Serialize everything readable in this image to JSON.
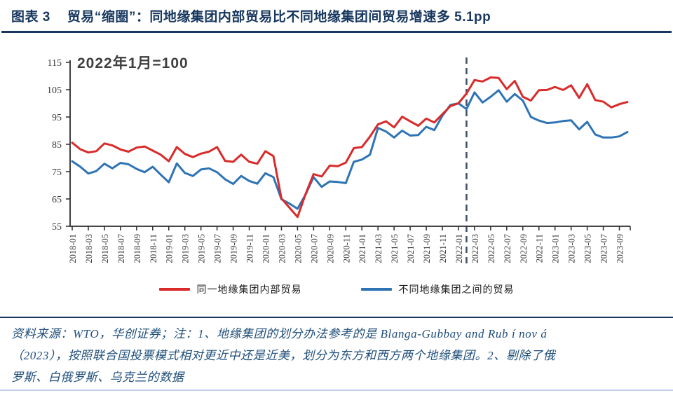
{
  "figure": {
    "title_label": "图表 3",
    "title_text": "贸易“缩圈”：同地缘集团内部贸易比不同地缘集团间贸易增速多 5.1pp",
    "accent_color": "#17375e"
  },
  "chart_data": {
    "type": "line",
    "annotation": "2022年1月=100",
    "ylim": [
      55,
      115
    ],
    "yticks": [
      55,
      65,
      75,
      85,
      95,
      105,
      115
    ],
    "grid": false,
    "legend_position": "bottom",
    "x": [
      "2018-01",
      "2018-02",
      "2018-03",
      "2018-04",
      "2018-05",
      "2018-06",
      "2018-07",
      "2018-08",
      "2018-09",
      "2018-10",
      "2018-11",
      "2018-12",
      "2019-01",
      "2019-02",
      "2019-03",
      "2019-04",
      "2019-05",
      "2019-06",
      "2019-07",
      "2019-08",
      "2019-09",
      "2019-10",
      "2019-11",
      "2019-12",
      "2020-01",
      "2020-02",
      "2020-03",
      "2020-04",
      "2020-05",
      "2020-06",
      "2020-07",
      "2020-08",
      "2020-09",
      "2020-10",
      "2020-11",
      "2020-12",
      "2021-01",
      "2021-02",
      "2021-03",
      "2021-04",
      "2021-05",
      "2021-06",
      "2021-07",
      "2021-08",
      "2021-09",
      "2021-10",
      "2021-11",
      "2021-12",
      "2022-01",
      "2022-02",
      "2022-03",
      "2022-04",
      "2022-05",
      "2022-06",
      "2022-07",
      "2022-08",
      "2022-09",
      "2022-10",
      "2022-11",
      "2022-12",
      "2023-01",
      "2023-02",
      "2023-03",
      "2023-04",
      "2023-05",
      "2023-06",
      "2023-07",
      "2023-08",
      "2023-09",
      "2023-10"
    ],
    "x_tick_every": 2,
    "vline": {
      "at": "2022-02",
      "index": 49,
      "color": "#44546a",
      "style": "dashed"
    },
    "series": [
      {
        "name": "同一地缘集团内部贸易",
        "color": "#d92b2b",
        "values": [
          85.6,
          83.2,
          82.0,
          82.5,
          85.3,
          84.6,
          83.1,
          82.3,
          83.8,
          84.2,
          82.7,
          81.2,
          78.8,
          84.0,
          81.5,
          80.3,
          81.6,
          82.3,
          84.0,
          78.9,
          78.6,
          81.2,
          78.6,
          77.9,
          82.5,
          80.7,
          65.2,
          61.8,
          58.4,
          66.8,
          74.1,
          73.2,
          77.2,
          77.0,
          78.3,
          83.6,
          84.0,
          87.8,
          92.3,
          93.4,
          91.2,
          95.1,
          93.4,
          91.8,
          94.4,
          93.0,
          96.0,
          99.0,
          100.0,
          103.6,
          108.5,
          108.0,
          109.5,
          109.3,
          105.2,
          108.2,
          102.4,
          101.0,
          104.8,
          104.9,
          106.0,
          104.9,
          106.6,
          102.0,
          107.0,
          101.2,
          100.6,
          98.5,
          99.7,
          100.5
        ]
      },
      {
        "name": "不同地缘集团之间的贸易",
        "color": "#2e74b5",
        "values": [
          78.8,
          76.8,
          74.3,
          75.2,
          77.9,
          76.2,
          78.2,
          77.7,
          76.0,
          74.8,
          76.8,
          73.9,
          71.1,
          78.0,
          74.5,
          73.4,
          75.8,
          76.2,
          74.8,
          72.2,
          70.5,
          73.4,
          71.6,
          70.6,
          74.4,
          73.0,
          64.9,
          63.3,
          61.4,
          66.6,
          73.0,
          69.4,
          71.4,
          71.2,
          70.8,
          78.6,
          79.4,
          81.2,
          91.0,
          89.7,
          87.5,
          90.0,
          88.2,
          88.4,
          91.4,
          90.2,
          95.4,
          99.4,
          100.0,
          97.9,
          104.0,
          100.3,
          102.4,
          104.8,
          100.6,
          103.4,
          101.0,
          95.0,
          93.7,
          92.8,
          93.0,
          93.5,
          93.8,
          90.5,
          93.2,
          88.6,
          87.5,
          87.5,
          87.9,
          89.5
        ]
      }
    ]
  },
  "footer": {
    "lines": [
      "资料来源：WTO，华创证券；注：1、地缘集团的划分办法参考的是 Blanga-Gubbay and Rub í nov á",
      "（2023），按照联合国投票模式相对更近中还是近美，划分为东方和西方两个地缘集团。2、剔除了俄",
      "罗斯、白俄罗斯、乌克兰的数据"
    ]
  }
}
